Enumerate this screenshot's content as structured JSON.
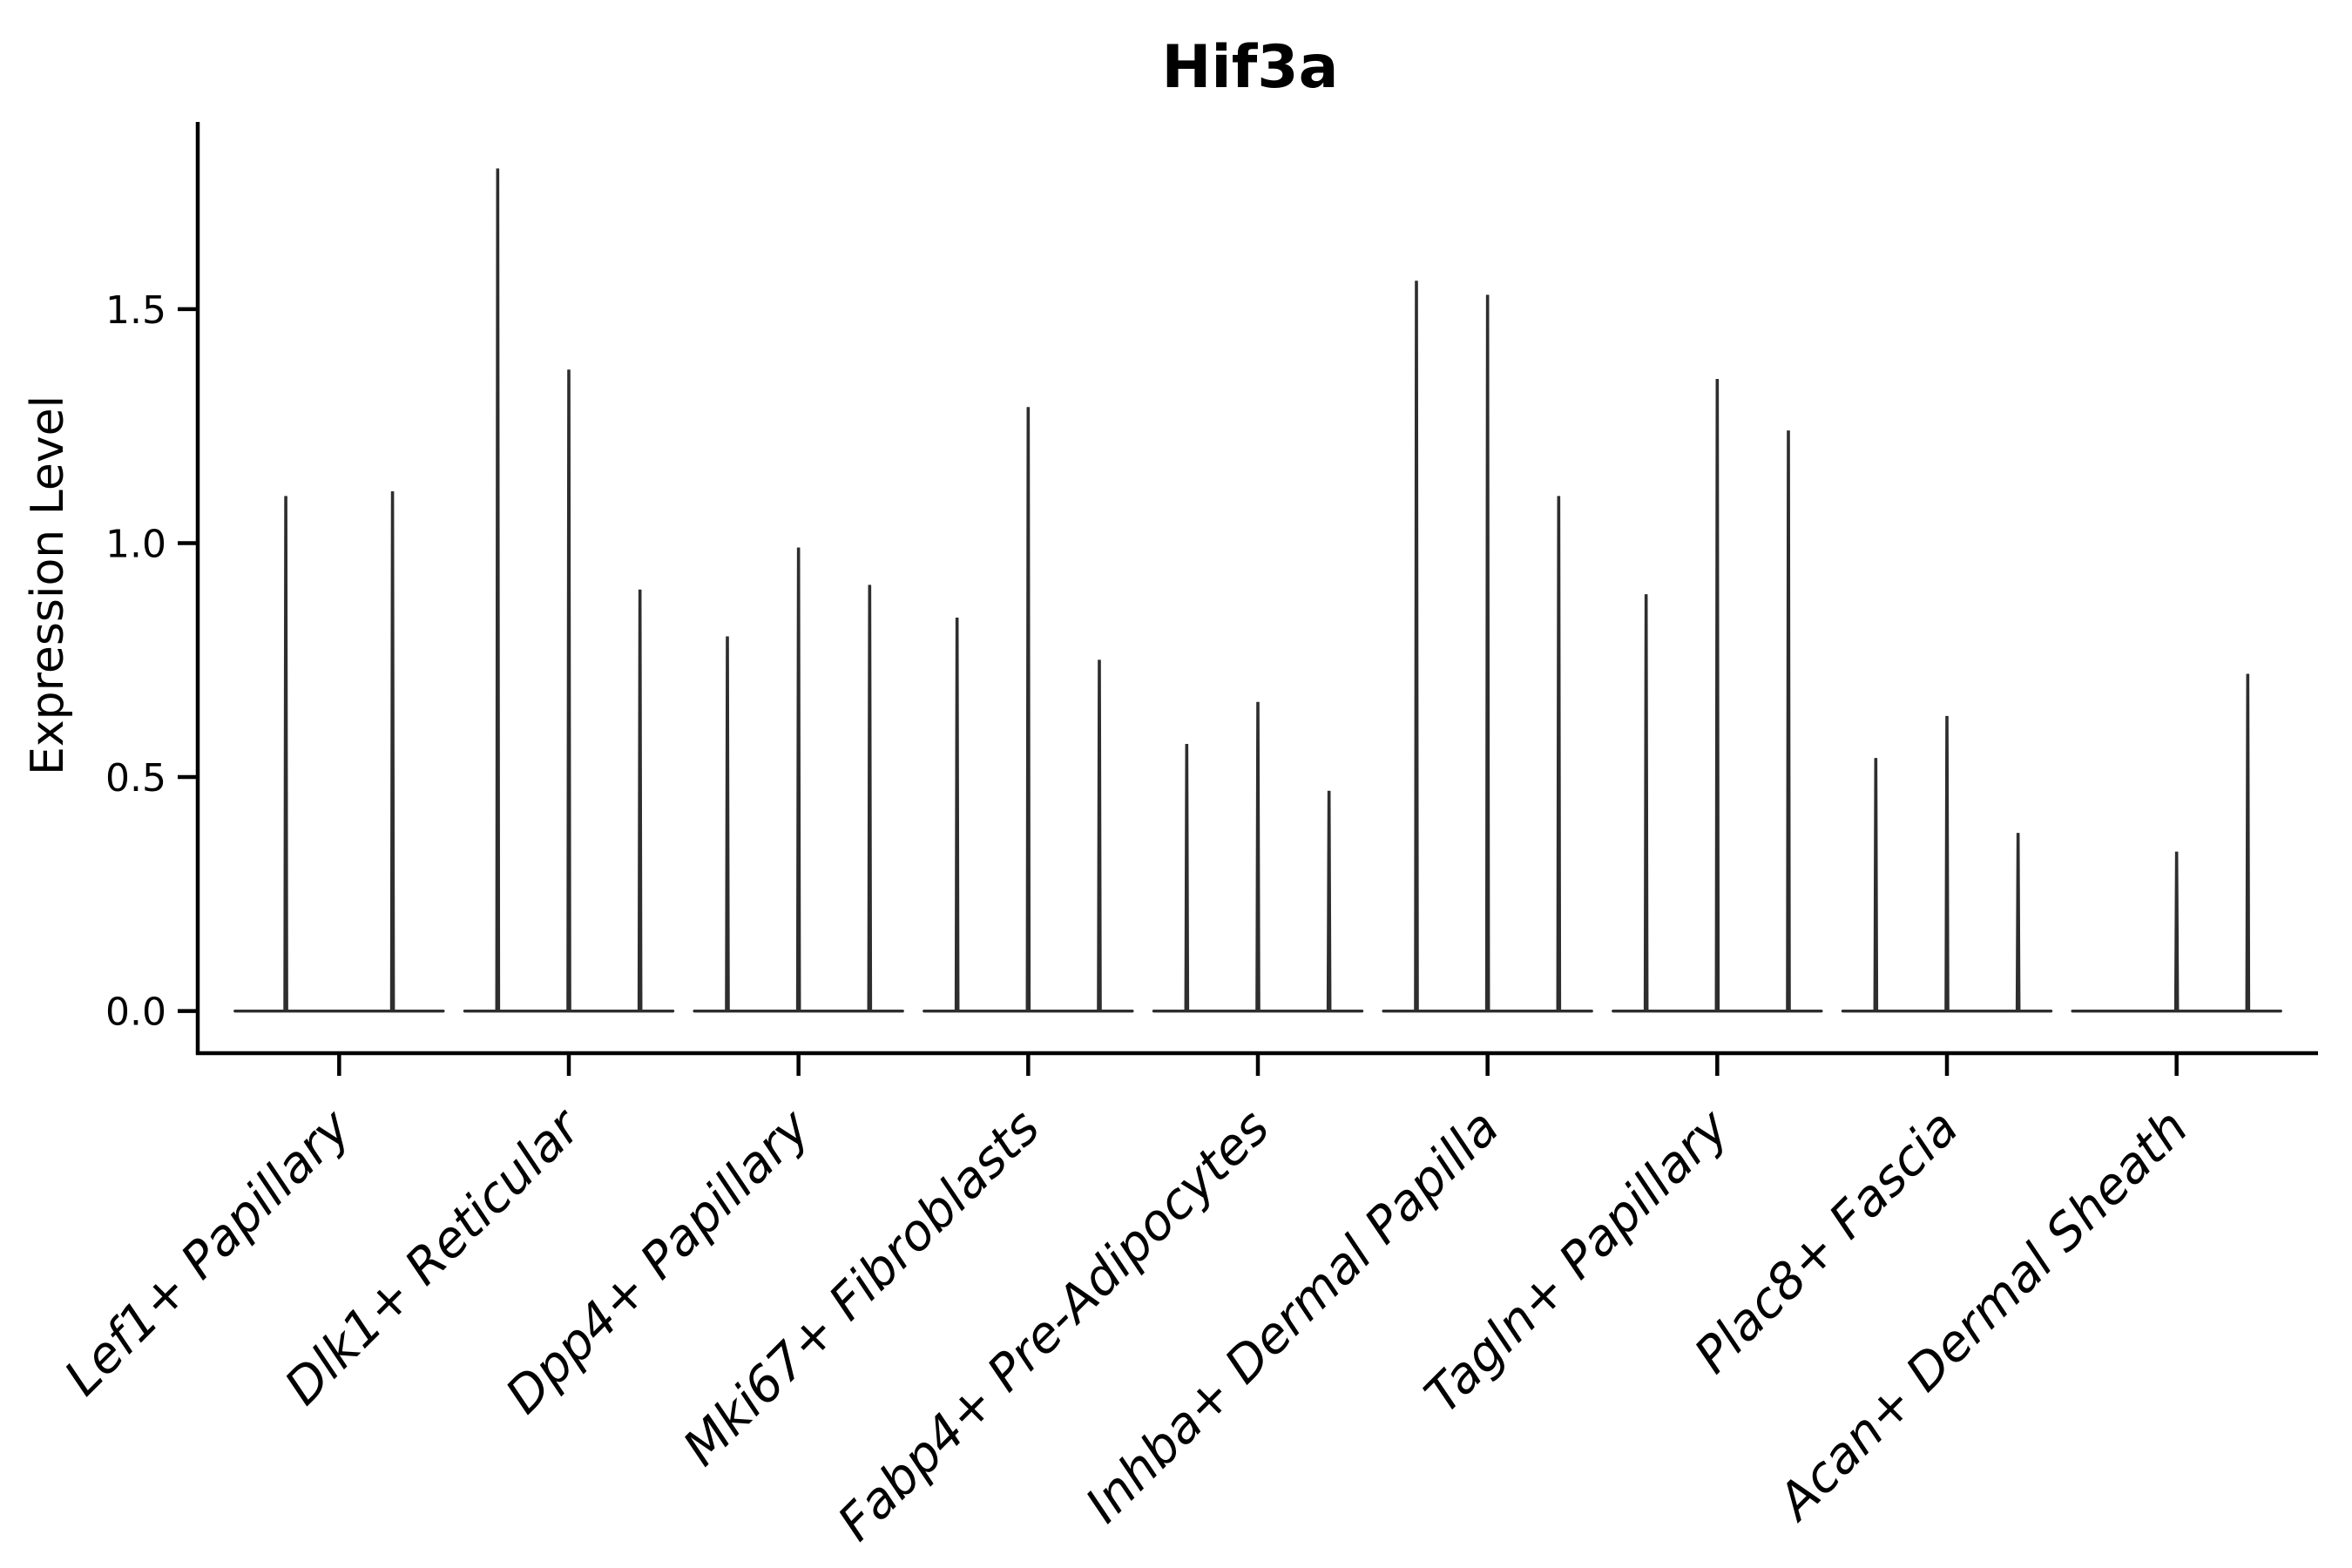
{
  "chart_data": {
    "type": "violin",
    "title": "Hif3a",
    "ylabel": "Expression Level",
    "xlabel": "",
    "yticks": [
      0.0,
      0.5,
      1.0,
      1.5
    ],
    "ylim": [
      -0.09,
      1.9
    ],
    "grid": false,
    "legend": false,
    "categories": [
      "Lef1+ Papillary",
      "Dlk1+ Reticular",
      "Dpp4+ Papillary",
      "Mki67+ Fibroblasts",
      "Fabp4+ Pre-Adipocytes",
      "Inhba+ Dermal Papilla",
      "Tagln+ Papillary",
      "Plac8+ Fascia",
      "Acan+ Dermal Sheath"
    ],
    "groups": [
      {
        "label": "Lef1+ Papillary",
        "violin_max": [
          1.1,
          1.11
        ]
      },
      {
        "label": "Dlk1+ Reticular",
        "violin_max": [
          1.8,
          1.37,
          0.9
        ]
      },
      {
        "label": "Dpp4+ Papillary",
        "violin_max": [
          0.8,
          0.99,
          0.91
        ]
      },
      {
        "label": "Mki67+ Fibroblasts",
        "violin_max": [
          0.84,
          1.29,
          0.75
        ]
      },
      {
        "label": "Fabp4+ Pre-Adipocytes",
        "violin_max": [
          0.57,
          0.66,
          0.47
        ]
      },
      {
        "label": "Inhba+ Dermal Papilla",
        "violin_max": [
          1.56,
          1.53,
          1.1
        ]
      },
      {
        "label": "Tagln+ Papillary",
        "violin_max": [
          0.89,
          1.35,
          1.24
        ]
      },
      {
        "label": "Plac8+ Fascia",
        "violin_max": [
          0.54,
          0.63,
          0.38
        ]
      },
      {
        "label": "Acan+ Dermal Sheath",
        "violin_max": [
          0.0,
          0.34,
          0.72
        ]
      }
    ],
    "colors": {
      "violin": "#2e2e2e",
      "axis": "#000000",
      "text": "#000000"
    }
  }
}
